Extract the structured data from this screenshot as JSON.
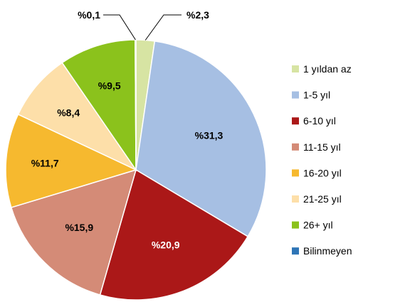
{
  "chart_data": {
    "type": "pie",
    "legend_position": "right",
    "slices": [
      {
        "label": "1 yıldan az",
        "value": 2.3,
        "display": "%2,3",
        "color": "#d7e4a3",
        "label_color": "#000000",
        "callout": true
      },
      {
        "label": "1-5 yıl",
        "value": 31.3,
        "display": "%31,3",
        "color": "#a6bfe3",
        "label_color": "#000000",
        "callout": false
      },
      {
        "label": "6-10 yıl",
        "value": 20.9,
        "display": "%20,9",
        "color": "#ab1818",
        "label_color": "#ffffff",
        "callout": false
      },
      {
        "label": "11-15 yıl",
        "value": 15.9,
        "display": "%15,9",
        "color": "#d48b77",
        "label_color": "#000000",
        "callout": false
      },
      {
        "label": "16-20 yıl",
        "value": 11.7,
        "display": "%11,7",
        "color": "#f6b92f",
        "label_color": "#000000",
        "callout": false
      },
      {
        "label": "21-25 yıl",
        "value": 8.4,
        "display": "%8,4",
        "color": "#fddfa9",
        "label_color": "#000000",
        "callout": false
      },
      {
        "label": "26+ yıl",
        "value": 9.5,
        "display": "%9,5",
        "color": "#8bc21c",
        "label_color": "#000000",
        "callout": false
      },
      {
        "label": "Bilinmeyen",
        "value": 0.1,
        "display": "%0,1",
        "color": "#2e75b6",
        "label_color": "#000000",
        "callout": true
      }
    ]
  }
}
